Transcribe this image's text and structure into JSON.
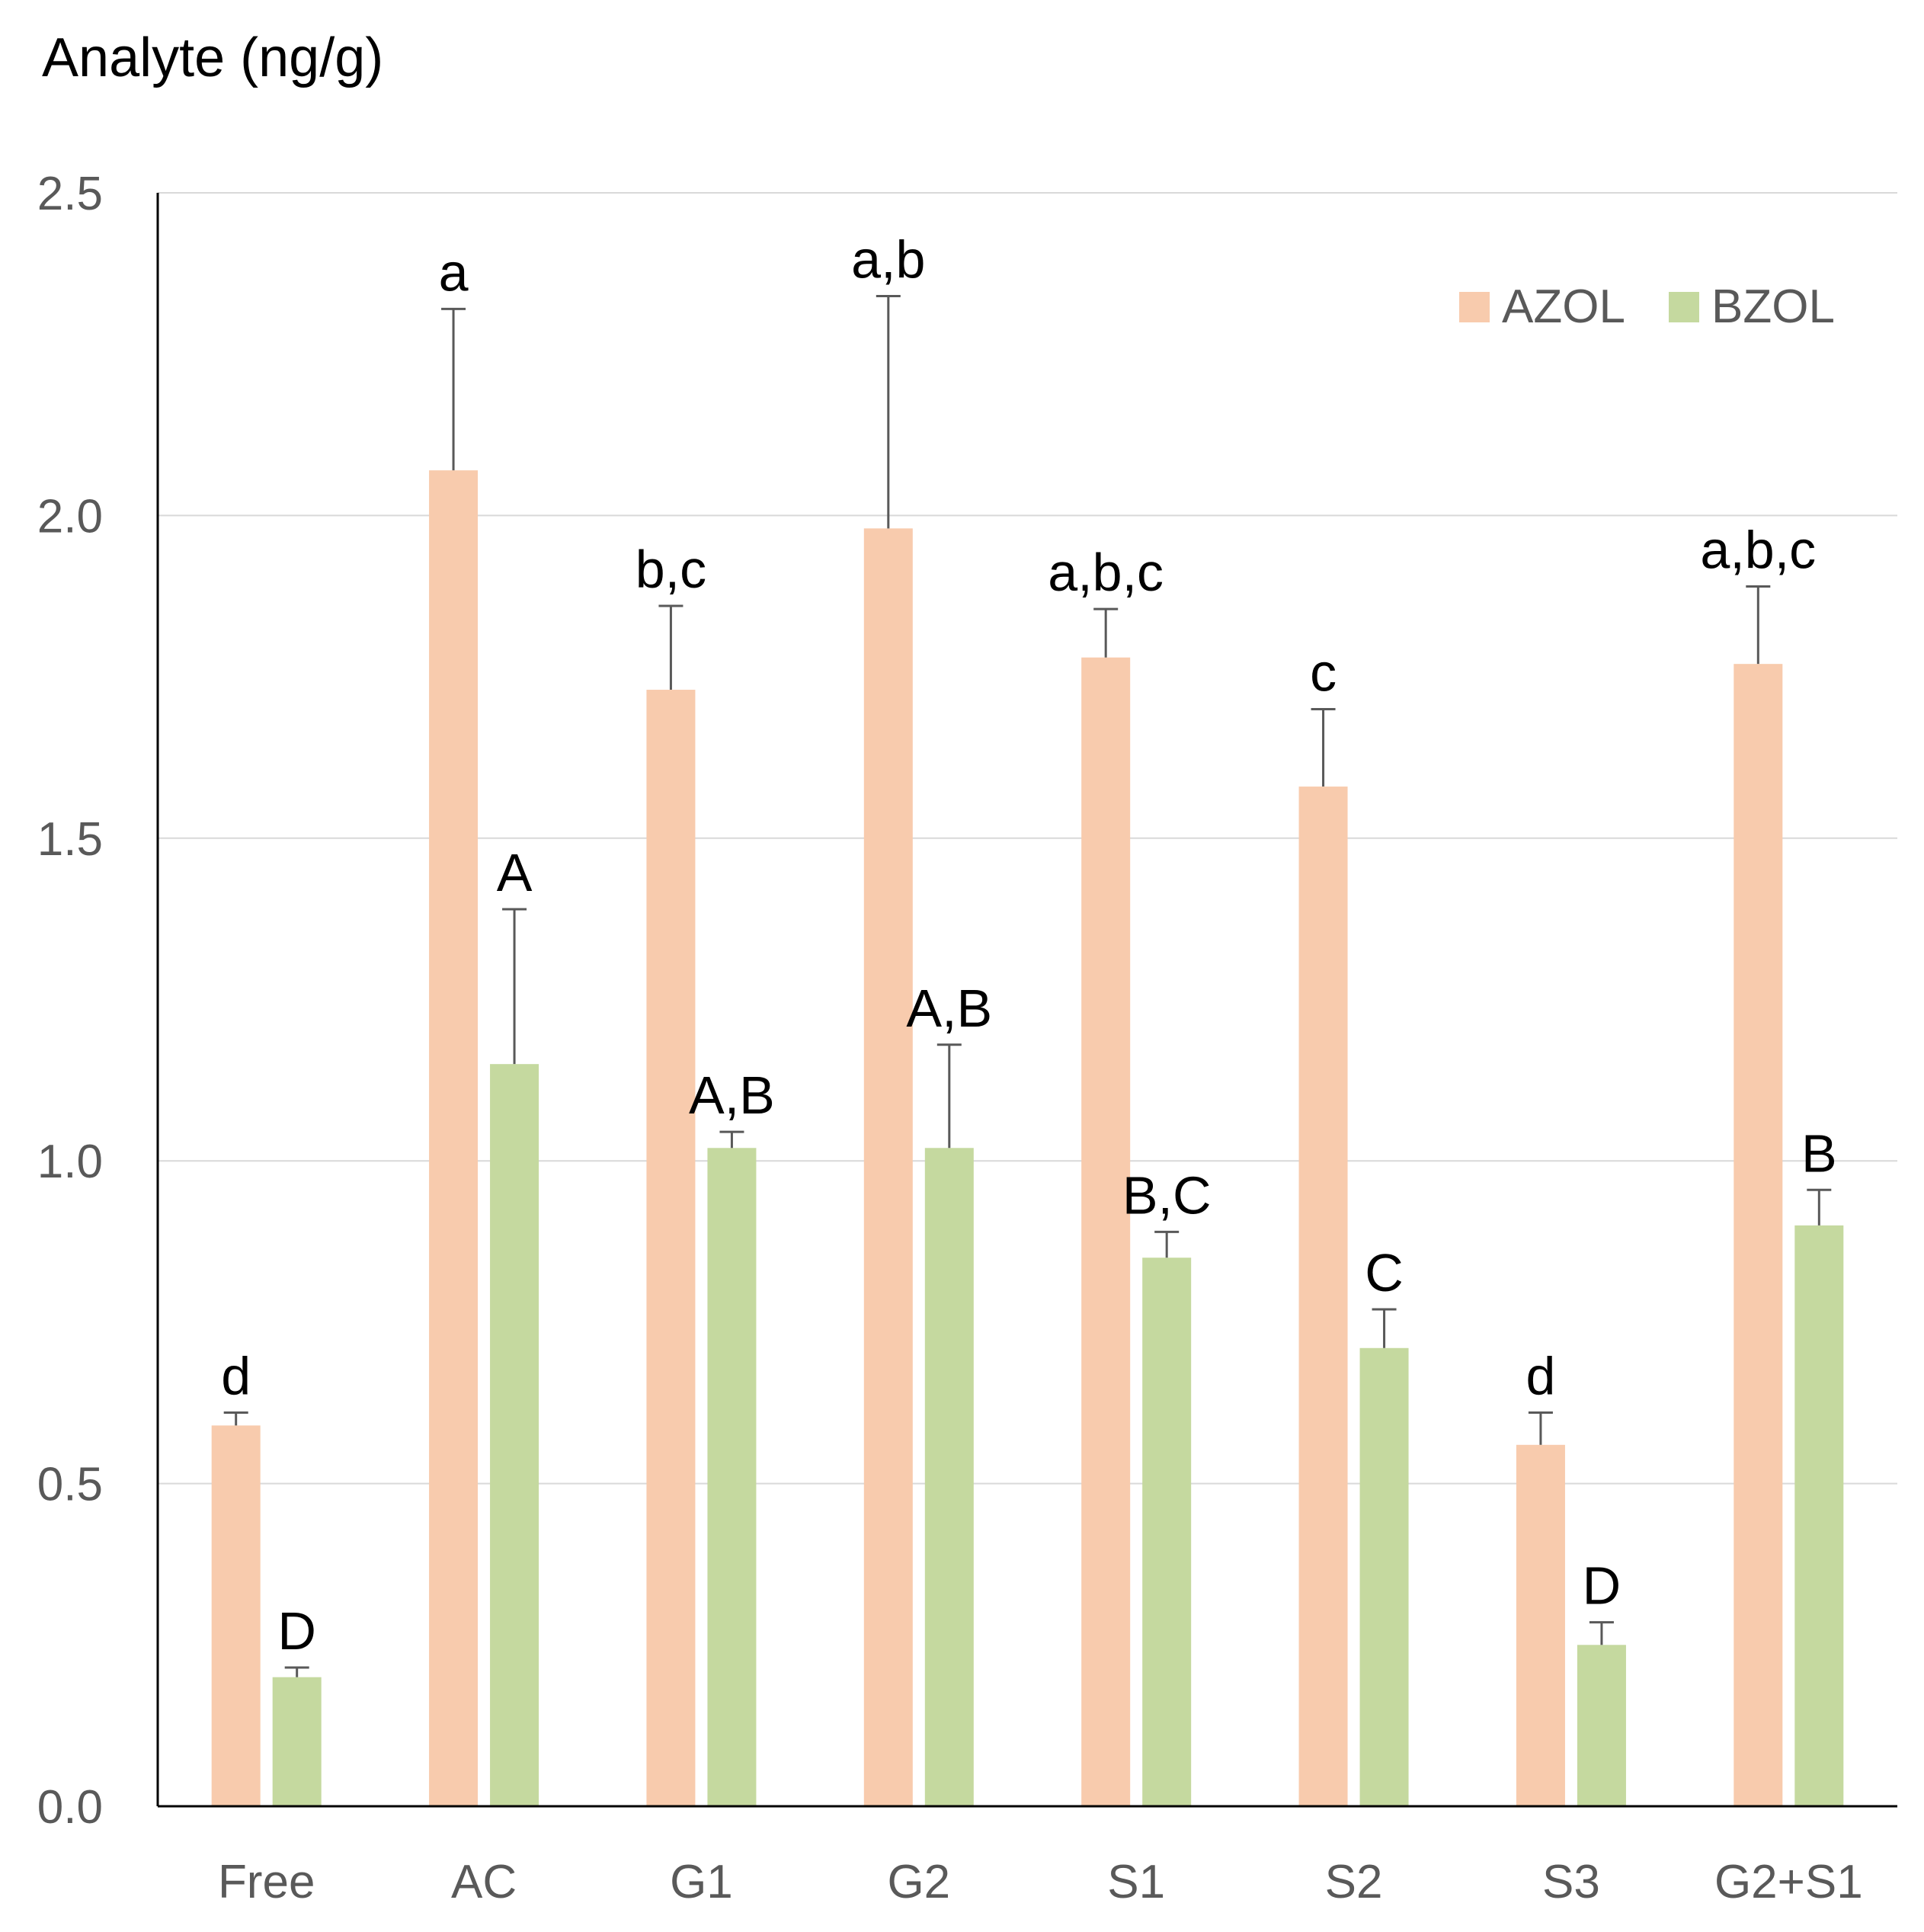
{
  "chart_data": {
    "type": "bar",
    "title": "Analyte (ng/g)",
    "xlabel": "",
    "ylabel": "Analyte (ng/g)",
    "categories": [
      "Free",
      "AC",
      "G1",
      "G2",
      "S1",
      "S2",
      "S3",
      "G2+S1"
    ],
    "ylim": [
      0,
      2.5
    ],
    "yticks": [
      0.0,
      0.5,
      1.0,
      1.5,
      2.0,
      2.5
    ],
    "ytick_labels": [
      "0.0",
      "0.5",
      "1.0",
      "1.5",
      "2.0",
      "2.5"
    ],
    "grid": true,
    "legend_position": "top-right",
    "series": [
      {
        "name": "AZOL",
        "color": "#F8CBAD",
        "values": [
          0.59,
          2.07,
          1.73,
          1.98,
          1.78,
          1.58,
          0.56,
          1.77
        ],
        "errors": [
          0.02,
          0.25,
          0.13,
          0.36,
          0.075,
          0.12,
          0.05,
          0.12
        ],
        "letters": [
          "d",
          "a",
          "b,c",
          "a,b",
          "a,b,c",
          "c",
          "d",
          "a,b,c"
        ]
      },
      {
        "name": "BZOL",
        "color": "#C5D99F",
        "values": [
          0.2,
          1.15,
          1.02,
          1.02,
          0.85,
          0.71,
          0.25,
          0.9
        ],
        "errors": [
          0.015,
          0.24,
          0.025,
          0.16,
          0.04,
          0.06,
          0.035,
          0.055
        ],
        "letters": [
          "D",
          "A",
          "A,B",
          "A,B",
          "B,C",
          "C",
          "D",
          "B"
        ]
      }
    ]
  },
  "colors": {
    "axis": "#000000",
    "grid": "#D9D9D9",
    "error_bar": "#595959",
    "tick_label": "#595959"
  }
}
